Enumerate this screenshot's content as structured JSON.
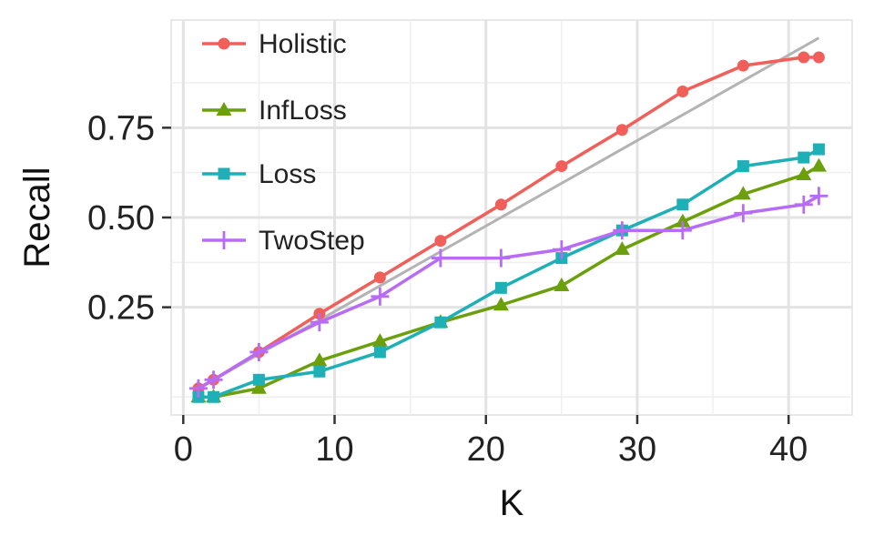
{
  "chart_data": {
    "type": "line",
    "title": "",
    "xlabel": "K",
    "ylabel": "Recall",
    "xlim": [
      -0.8,
      44.2
    ],
    "ylim": [
      -0.05,
      1.05
    ],
    "x_ticks": [
      0,
      10,
      20,
      30,
      40
    ],
    "x_tick_labels": [
      "0",
      "10",
      "20",
      "30",
      "40"
    ],
    "y_ticks": [
      0.25,
      0.5,
      0.75
    ],
    "y_tick_labels": [
      "0.25",
      "0.50",
      "0.75"
    ],
    "grid": true,
    "legend_position": "top-left",
    "reference_line": {
      "color": "#b3b3b3",
      "x": [
        1,
        42
      ],
      "y": [
        0.024,
        1.0
      ]
    },
    "series": [
      {
        "name": "Holistic",
        "color": "#f15f5a",
        "marker": "circle",
        "x": [
          1,
          2,
          5,
          9,
          13,
          17,
          21,
          25,
          29,
          33,
          37,
          41,
          42
        ],
        "y": [
          0.024,
          0.048,
          0.125,
          0.232,
          0.333,
          0.435,
          0.536,
          0.643,
          0.744,
          0.851,
          0.923,
          0.946,
          0.946
        ]
      },
      {
        "name": "InfLoss",
        "color": "#6c9f0c",
        "marker": "triangle",
        "x": [
          1,
          2,
          5,
          9,
          13,
          17,
          21,
          25,
          29,
          33,
          37,
          41,
          42
        ],
        "y": [
          0.0,
          0.0,
          0.024,
          0.101,
          0.155,
          0.208,
          0.256,
          0.31,
          0.411,
          0.488,
          0.565,
          0.619,
          0.643
        ]
      },
      {
        "name": "Loss",
        "color": "#1eb0b6",
        "marker": "square",
        "x": [
          1,
          2,
          5,
          9,
          13,
          17,
          21,
          25,
          29,
          33,
          37,
          41,
          42
        ],
        "y": [
          0.0,
          0.0,
          0.048,
          0.071,
          0.125,
          0.208,
          0.304,
          0.387,
          0.464,
          0.536,
          0.643,
          0.667,
          0.69
        ]
      },
      {
        "name": "TwoStep",
        "color": "#b86bf5",
        "marker": "plus",
        "x": [
          1,
          2,
          5,
          9,
          13,
          17,
          21,
          25,
          29,
          33,
          37,
          41,
          42
        ],
        "y": [
          0.024,
          0.048,
          0.125,
          0.208,
          0.28,
          0.387,
          0.387,
          0.411,
          0.464,
          0.464,
          0.512,
          0.536,
          0.56
        ]
      }
    ]
  }
}
